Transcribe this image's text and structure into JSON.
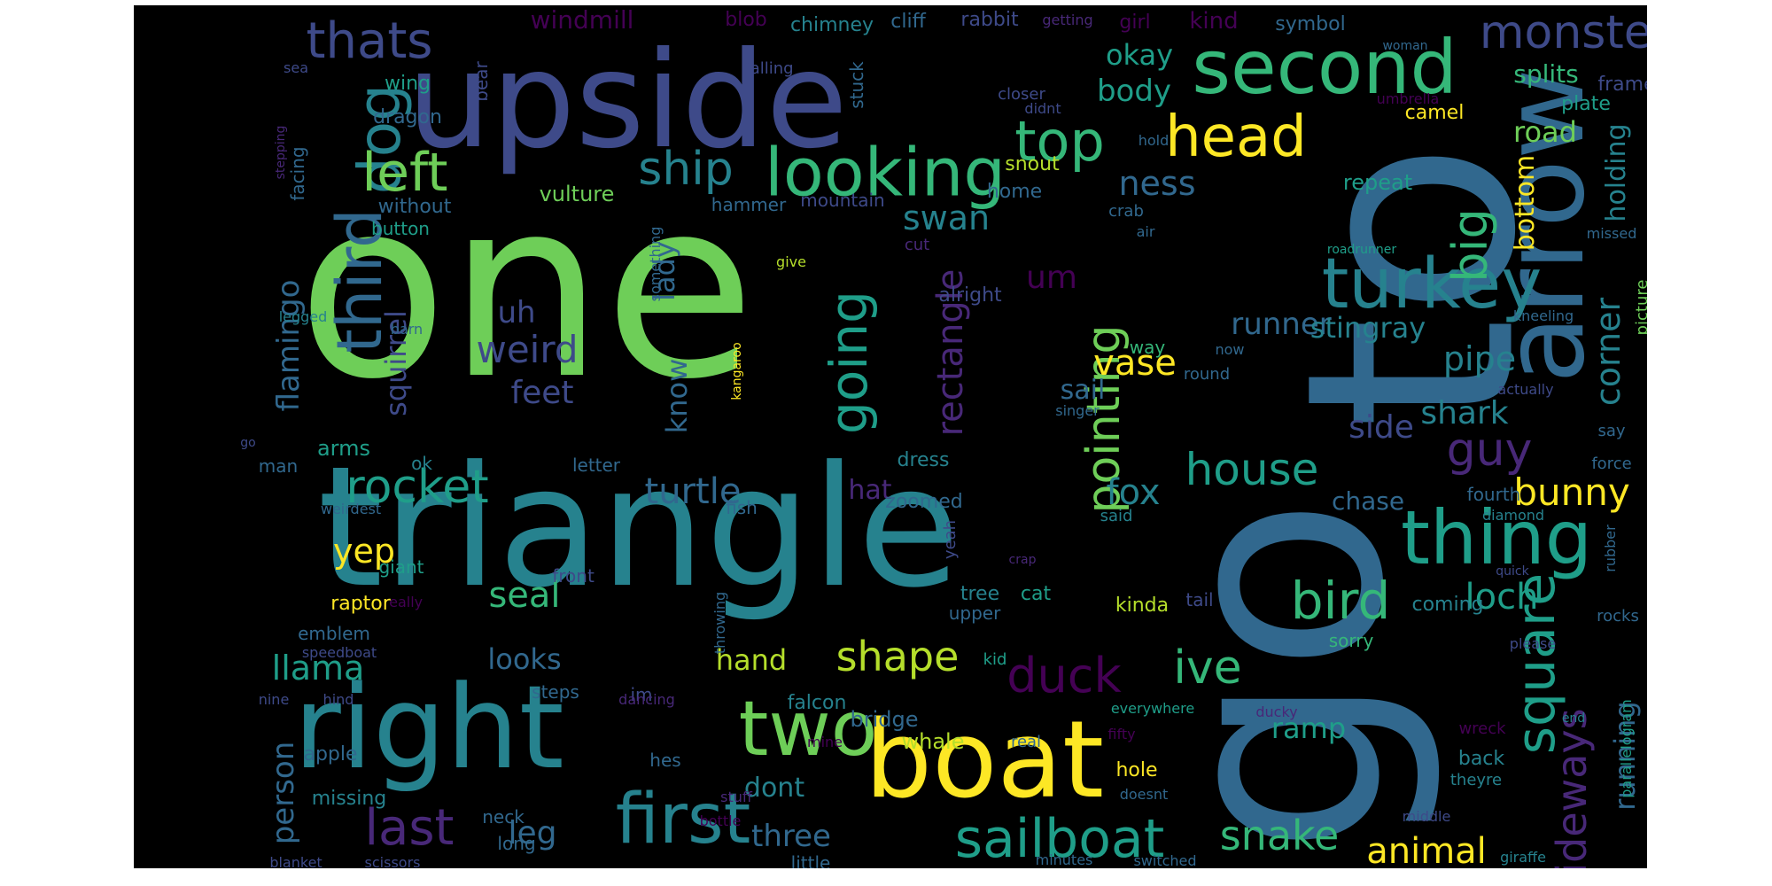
{
  "palette": [
    "#440154",
    "#482878",
    "#3e4a89",
    "#31688e",
    "#26828e",
    "#1f9e89",
    "#35b779",
    "#6ece58",
    "#b5de2b",
    "#fde725"
  ],
  "words": [
    {
      "text": "one",
      "c": 7
    },
    {
      "text": "to",
      "c": 3
    },
    {
      "text": "triangle",
      "c": 4
    },
    {
      "text": "upside",
      "c": 2
    },
    {
      "text": "go",
      "c": 3
    },
    {
      "text": "right",
      "c": 4
    },
    {
      "text": "boat",
      "c": 9
    },
    {
      "text": "arrow",
      "c": 3
    },
    {
      "text": "second",
      "c": 6
    },
    {
      "text": "turkey",
      "c": 4
    },
    {
      "text": "thing",
      "c": 5
    },
    {
      "text": "looking",
      "c": 6
    },
    {
      "text": "two",
      "c": 7
    },
    {
      "text": "first",
      "c": 4
    },
    {
      "text": "third",
      "c": 3
    },
    {
      "text": "dog",
      "c": 4
    },
    {
      "text": "head",
      "c": 9
    },
    {
      "text": "top",
      "c": 6
    },
    {
      "text": "left",
      "c": 7
    },
    {
      "text": "going",
      "c": 5
    },
    {
      "text": "bird",
      "c": 6
    },
    {
      "text": "square",
      "c": 5
    },
    {
      "text": "sailboat",
      "c": 5
    },
    {
      "text": "thats",
      "c": 2
    },
    {
      "text": "monster",
      "c": 2
    },
    {
      "text": "ship",
      "c": 4
    },
    {
      "text": "rocket",
      "c": 5
    },
    {
      "text": "last",
      "c": 1
    },
    {
      "text": "big",
      "c": 6
    },
    {
      "text": "guy",
      "c": 1
    },
    {
      "text": "pointing",
      "c": 7
    },
    {
      "text": "ive",
      "c": 6
    },
    {
      "text": "house",
      "c": 5
    },
    {
      "text": "sideways",
      "c": 1
    },
    {
      "text": "duck",
      "c": 0
    },
    {
      "text": "shape",
      "c": 8
    },
    {
      "text": "snake",
      "c": 6
    },
    {
      "text": "bunny",
      "c": 9
    },
    {
      "text": "animal",
      "c": 9
    },
    {
      "text": "weird",
      "c": 2
    },
    {
      "text": "rectangle",
      "c": 1
    },
    {
      "text": "turtle",
      "c": 3
    },
    {
      "text": "fox",
      "c": 4
    },
    {
      "text": "seal",
      "c": 6
    },
    {
      "text": "loch",
      "c": 5
    },
    {
      "text": "corner",
      "c": 4
    },
    {
      "text": "swan",
      "c": 4
    },
    {
      "text": "ness",
      "c": 3
    },
    {
      "text": "pipe",
      "c": 4
    },
    {
      "text": "shark",
      "c": 4
    },
    {
      "text": "side",
      "c": 2
    },
    {
      "text": "yep",
      "c": 9
    },
    {
      "text": "vase",
      "c": 9
    },
    {
      "text": "leg",
      "c": 3
    },
    {
      "text": "llama",
      "c": 5
    },
    {
      "text": "person",
      "c": 3
    },
    {
      "text": "flamingo",
      "c": 3
    },
    {
      "text": "squirrel",
      "c": 2
    },
    {
      "text": "lady",
      "c": 3
    },
    {
      "text": "feet",
      "c": 2
    },
    {
      "text": "uh",
      "c": 2
    },
    {
      "text": "um",
      "c": 0
    },
    {
      "text": "runner",
      "c": 3
    },
    {
      "text": "stingray",
      "c": 4
    },
    {
      "text": "body",
      "c": 5
    },
    {
      "text": "okay",
      "c": 5
    },
    {
      "text": "road",
      "c": 7
    },
    {
      "text": "holding",
      "c": 4
    },
    {
      "text": "bottom",
      "c": 9
    },
    {
      "text": "splits",
      "c": 6
    },
    {
      "text": "three",
      "c": 3
    },
    {
      "text": "hand",
      "c": 8
    },
    {
      "text": "looks",
      "c": 3
    },
    {
      "text": "know",
      "c": 3
    },
    {
      "text": "running",
      "c": 3
    },
    {
      "text": "ramp",
      "c": 5
    },
    {
      "text": "chase",
      "c": 3
    },
    {
      "text": "sail",
      "c": 3
    },
    {
      "text": "dont",
      "c": 4
    },
    {
      "text": "hat",
      "c": 1
    },
    {
      "text": "windmill",
      "c": 0
    },
    {
      "text": "blob",
      "c": 0
    },
    {
      "text": "chimney",
      "c": 4
    },
    {
      "text": "cliff",
      "c": 3
    },
    {
      "text": "rabbit",
      "c": 2
    },
    {
      "text": "getting",
      "c": 1
    },
    {
      "text": "girl",
      "c": 0
    },
    {
      "text": "kind",
      "c": 0
    },
    {
      "text": "symbol",
      "c": 3
    },
    {
      "text": "woman",
      "c": 3
    },
    {
      "text": "frame",
      "c": 2
    },
    {
      "text": "wing",
      "c": 5
    },
    {
      "text": "bear",
      "c": 2
    },
    {
      "text": "closer",
      "c": 2
    },
    {
      "text": "falling",
      "c": 2
    },
    {
      "text": "stuck",
      "c": 3
    },
    {
      "text": "sea",
      "c": 2
    },
    {
      "text": "facing",
      "c": 3
    },
    {
      "text": "stepping",
      "c": 1
    },
    {
      "text": "dragon",
      "c": 3
    },
    {
      "text": "didnt",
      "c": 2
    },
    {
      "text": "umbrella",
      "c": 0
    },
    {
      "text": "plate",
      "c": 5
    },
    {
      "text": "camel",
      "c": 9
    },
    {
      "text": "repeat",
      "c": 5
    },
    {
      "text": "hold",
      "c": 3
    },
    {
      "text": "snout",
      "c": 8
    },
    {
      "text": "home",
      "c": 3
    },
    {
      "text": "crab",
      "c": 3
    },
    {
      "text": "vulture",
      "c": 7
    },
    {
      "text": "without",
      "c": 3
    },
    {
      "text": "button",
      "c": 5
    },
    {
      "text": "hammer",
      "c": 3
    },
    {
      "text": "mountain",
      "c": 2
    },
    {
      "text": "roadrunner",
      "c": 5
    },
    {
      "text": "missed",
      "c": 3
    },
    {
      "text": "air",
      "c": 3
    },
    {
      "text": "cut",
      "c": 1
    },
    {
      "text": "give",
      "c": 8
    },
    {
      "text": "alright",
      "c": 2
    },
    {
      "text": "something",
      "c": 3
    },
    {
      "text": "legged",
      "c": 4
    },
    {
      "text": "barn",
      "c": 3
    },
    {
      "text": "kneeling",
      "c": 3
    },
    {
      "text": "picture",
      "c": 7
    },
    {
      "text": "way",
      "c": 6
    },
    {
      "text": "now",
      "c": 3
    },
    {
      "text": "kangaroo",
      "c": 9
    },
    {
      "text": "round",
      "c": 3
    },
    {
      "text": "actually",
      "c": 2
    },
    {
      "text": "singer",
      "c": 3
    },
    {
      "text": "go",
      "c": 2
    },
    {
      "text": "man",
      "c": 3
    },
    {
      "text": "arms",
      "c": 5
    },
    {
      "text": "ok",
      "c": 4
    },
    {
      "text": "letter",
      "c": 3
    },
    {
      "text": "dress",
      "c": 4
    },
    {
      "text": "say",
      "c": 3
    },
    {
      "text": "force",
      "c": 3
    },
    {
      "text": "weirdest",
      "c": 3
    },
    {
      "text": "fish",
      "c": 3
    },
    {
      "text": "zoomed",
      "c": 3
    },
    {
      "text": "yeah",
      "c": 2
    },
    {
      "text": "said",
      "c": 4
    },
    {
      "text": "fourth",
      "c": 3
    },
    {
      "text": "diamond",
      "c": 4
    },
    {
      "text": "rubber",
      "c": 3
    },
    {
      "text": "giant",
      "c": 5
    },
    {
      "text": "front",
      "c": 2
    },
    {
      "text": "really",
      "c": 0
    },
    {
      "text": "crap",
      "c": 1
    },
    {
      "text": "quick",
      "c": 2
    },
    {
      "text": "raptor",
      "c": 9
    },
    {
      "text": "cat",
      "c": 5
    },
    {
      "text": "tree",
      "c": 4
    },
    {
      "text": "kinda",
      "c": 8
    },
    {
      "text": "tail",
      "c": 2
    },
    {
      "text": "coming",
      "c": 4
    },
    {
      "text": "rocks",
      "c": 3
    },
    {
      "text": "emblem",
      "c": 3
    },
    {
      "text": "upper",
      "c": 3
    },
    {
      "text": "throwing",
      "c": 3
    },
    {
      "text": "sorry",
      "c": 6
    },
    {
      "text": "please",
      "c": 2
    },
    {
      "text": "speedboat",
      "c": 2
    },
    {
      "text": "kid",
      "c": 5
    },
    {
      "text": "steps",
      "c": 3
    },
    {
      "text": "nine",
      "c": 2
    },
    {
      "text": "hind",
      "c": 2
    },
    {
      "text": "im",
      "c": 2
    },
    {
      "text": "dancing",
      "c": 1
    },
    {
      "text": "falcon",
      "c": 4
    },
    {
      "text": "bridge",
      "c": 3
    },
    {
      "text": "everywhere",
      "c": 5
    },
    {
      "text": "ducky",
      "c": 1
    },
    {
      "text": "parallelogram",
      "c": 5
    },
    {
      "text": "end",
      "c": 4
    },
    {
      "text": "whale",
      "c": 8
    },
    {
      "text": "real",
      "c": 3
    },
    {
      "text": "fifty",
      "c": 0
    },
    {
      "text": "wreck",
      "c": 0
    },
    {
      "text": "apple",
      "c": 3
    },
    {
      "text": "mine",
      "c": 0
    },
    {
      "text": "hes",
      "c": 3
    },
    {
      "text": "hole",
      "c": 9
    },
    {
      "text": "back",
      "c": 4
    },
    {
      "text": "theyre",
      "c": 4
    },
    {
      "text": "missing",
      "c": 4
    },
    {
      "text": "stuff",
      "c": 1
    },
    {
      "text": "doesnt",
      "c": 3
    },
    {
      "text": "neck",
      "c": 3
    },
    {
      "text": "bottle",
      "c": 0
    },
    {
      "text": "middle",
      "c": 2
    },
    {
      "text": "long",
      "c": 3
    },
    {
      "text": "little",
      "c": 3
    },
    {
      "text": "minutes",
      "c": 3
    },
    {
      "text": "switched",
      "c": 3
    },
    {
      "text": "giraffe",
      "c": 4
    },
    {
      "text": "blanket",
      "c": 2
    },
    {
      "text": "scissors",
      "c": 2
    }
  ]
}
